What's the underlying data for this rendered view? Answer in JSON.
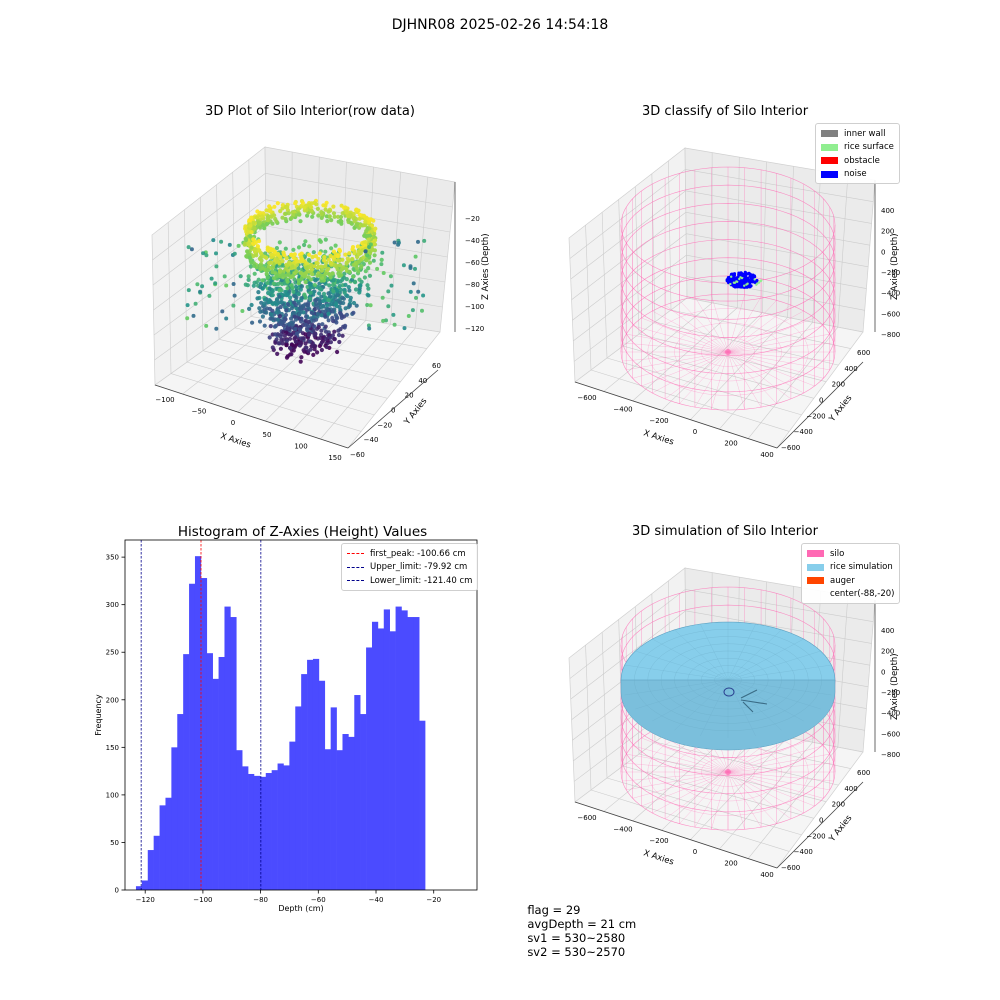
{
  "figure": {
    "suptitle": "DJHNR08 2025-02-26 14:54:18"
  },
  "colors": {
    "hist_bar": "#4b4bff",
    "first_peak": "#ff0000",
    "limits": "#00008b",
    "silo": "#ff69b4",
    "rice_simulation": "#87ceeb",
    "auger": "#ff4500",
    "inner_wall": "#808080",
    "rice_surface": "#90ee90",
    "obstacle": "#ff0000",
    "noise": "#0000ff"
  },
  "chart_data": [
    {
      "id": "raw-data",
      "type": "scatter3d",
      "title": "3D Plot of Silo Interior(row data)",
      "xlabel": "X Axies",
      "ylabel": "Y Axies",
      "zlabel": "Z Axies (Depth)",
      "x_ticks": [
        "−100",
        "−50",
        "0",
        "50",
        "100",
        "150"
      ],
      "y_ticks": [
        "−60",
        "−40",
        "−20",
        "0",
        "20",
        "40",
        "60"
      ],
      "z_ticks": [
        "−20",
        "−40",
        "−60",
        "−80",
        "−100",
        "−120"
      ],
      "colormap": "viridis",
      "z_range": [
        -125,
        -15
      ]
    },
    {
      "id": "classify",
      "type": "scatter3d",
      "title": "3D classify of Silo Interior",
      "xlabel": "X Axies",
      "ylabel": "Y Axies",
      "zlabel": "Z Axies (Depth)",
      "x_ticks": [
        "−600",
        "−400",
        "−200",
        "0",
        "200",
        "400"
      ],
      "y_ticks": [
        "−600",
        "−400",
        "−200",
        "0",
        "200",
        "400",
        "600"
      ],
      "z_ticks": [
        "400",
        "200",
        "0",
        "−200",
        "−400",
        "−600",
        "−800"
      ],
      "legend": [
        {
          "label": "inner wall",
          "color": "#808080"
        },
        {
          "label": "rice surface",
          "color": "#90ee90"
        },
        {
          "label": "obstacle",
          "color": "#ff0000"
        },
        {
          "label": "noise",
          "color": "#0000ff"
        }
      ]
    },
    {
      "id": "histogram",
      "type": "bar",
      "title": "Histogram of Z-Axies (Height) Values",
      "xlabel": "Depth (cm)",
      "ylabel": "Frequency",
      "xlim": [
        -127,
        -5
      ],
      "ylim": [
        0,
        368
      ],
      "x_ticks": [
        -120,
        -100,
        -80,
        -60,
        -40,
        -20
      ],
      "x_tick_labels": [
        "−120",
        "−100",
        "−80",
        "−60",
        "−40",
        "−20"
      ],
      "y_ticks": [
        0,
        50,
        100,
        150,
        200,
        250,
        300,
        350
      ],
      "y_tick_labels": [
        "0",
        "50",
        "100",
        "150",
        "200",
        "250",
        "300",
        "350"
      ],
      "bin_start": -123.2,
      "bin_width": 2.045,
      "values": [
        4,
        10,
        42,
        57,
        89,
        97,
        150,
        185,
        248,
        322,
        351,
        328,
        249,
        222,
        245,
        298,
        287,
        147,
        130,
        122,
        120,
        119,
        123,
        126,
        133,
        131,
        156,
        193,
        227,
        242,
        243,
        220,
        148,
        192,
        147,
        164,
        161,
        205,
        185,
        255,
        282,
        275,
        295,
        272,
        298,
        294,
        287,
        287,
        178
      ],
      "vlines": [
        {
          "label": "first_peak: -100.66 cm",
          "value": -100.66,
          "color": "#ff0000"
        },
        {
          "label": "Upper_limit: -79.92 cm",
          "value": -79.92,
          "color": "#00008b"
        },
        {
          "label": "Lower_limit: -121.40 cm",
          "value": -121.4,
          "color": "#00008b"
        }
      ]
    },
    {
      "id": "simulation",
      "type": "surface3d",
      "title": "3D simulation of Silo Interior",
      "xlabel": "X Axies",
      "ylabel": "Y Axies",
      "zlabel": "Z Axies (Depth)",
      "x_ticks": [
        "−600",
        "−400",
        "−200",
        "0",
        "200",
        "400"
      ],
      "y_ticks": [
        "−600",
        "−400",
        "−200",
        "0",
        "200",
        "400",
        "600"
      ],
      "z_ticks": [
        "400",
        "200",
        "0",
        "−200",
        "−400",
        "−600",
        "−800"
      ],
      "legend": [
        {
          "label": "silo",
          "color": "#ff69b4"
        },
        {
          "label": "rice simulation",
          "color": "#87ceeb"
        },
        {
          "label": "auger",
          "color": "#ff4500"
        },
        {
          "label": "center(-88,-20)",
          "color": ""
        }
      ]
    }
  ],
  "status": {
    "flag": "flag = 29",
    "avg_depth": "avgDepth = 21 cm",
    "sv1": "sv1 = 530~2580",
    "sv2": "sv2 = 530~2570"
  }
}
